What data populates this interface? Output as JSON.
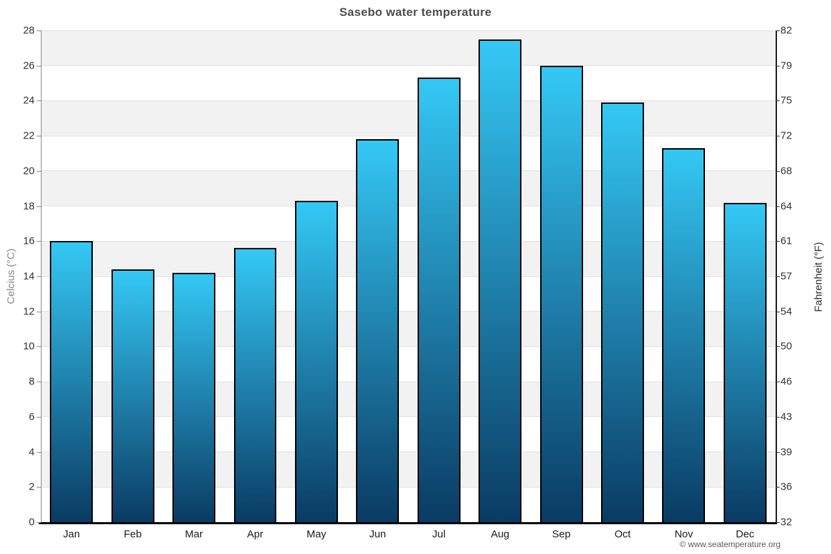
{
  "page": {
    "footer": "© www.seatemperature.org"
  },
  "chart_data": {
    "type": "bar",
    "title": "Sasebo water temperature",
    "categories": [
      "Jan",
      "Feb",
      "Mar",
      "Apr",
      "May",
      "Jun",
      "Jul",
      "Aug",
      "Sep",
      "Oct",
      "Nov",
      "Dec"
    ],
    "values": [
      16.0,
      14.4,
      14.2,
      15.6,
      18.3,
      21.8,
      25.3,
      27.5,
      26.0,
      23.9,
      21.3,
      18.2
    ],
    "unit": "°C",
    "ylabel_left": "Celcius (°C)",
    "ylabel_right": "Fahrenheit (°F)",
    "ylim": [
      0,
      28
    ],
    "ytick_step": 2,
    "yticks_celsius": [
      0,
      2,
      4,
      6,
      8,
      10,
      12,
      14,
      16,
      18,
      20,
      22,
      24,
      26,
      28
    ],
    "yticks_fahrenheit": [
      32,
      36,
      39,
      43,
      46,
      50,
      54,
      57,
      61,
      64,
      68,
      72,
      75,
      79,
      82
    ],
    "grid": "horizontal-bands-alternating",
    "legend": "none",
    "colors": {
      "bar_top": "#35c8f5",
      "bar_bottom": "#0a3b63",
      "bar_border": "#000000",
      "band_shade": "#f2f2f2",
      "band_light": "#ffffff",
      "gridline": "#e0e0e0",
      "axis_left": "#888888",
      "axis_right": "#1a1a1a",
      "axis_bottom": "#000000",
      "title": "#4d4d4d",
      "tick_label": "#333333",
      "month_label": "#1a1a1a",
      "ylabel_left": "#878787",
      "ylabel_right": "#2b2b2b",
      "footer": "#595959"
    }
  }
}
